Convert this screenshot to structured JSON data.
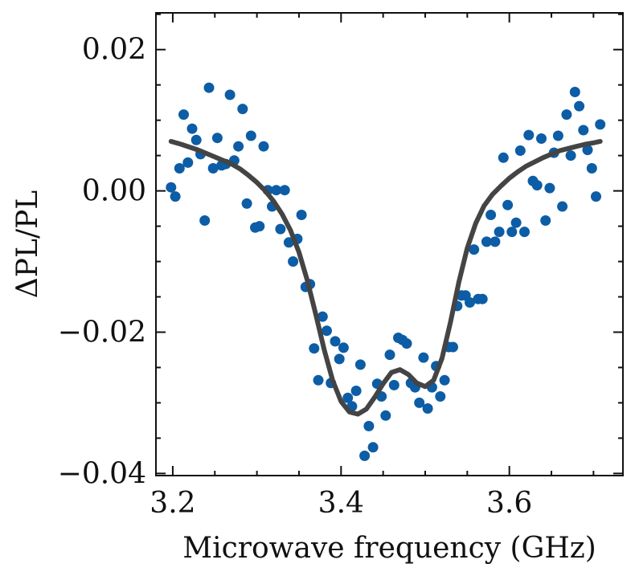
{
  "chart_data": {
    "type": "scatter",
    "title": "",
    "xlabel": "Microwave frequency (GHz)",
    "ylabel": "ΔPL/PL",
    "xlim": [
      3.18,
      3.735
    ],
    "ylim": [
      -0.0403,
      0.0252
    ],
    "xticks": [
      3.2,
      3.4,
      3.6
    ],
    "xtick_labels": [
      "3.2",
      "3.4",
      "3.6"
    ],
    "yticks": [
      0.02,
      0.0,
      -0.02,
      -0.04
    ],
    "ytick_labels": [
      "0.02",
      "0.00",
      "−0.02",
      "−0.04"
    ],
    "grid": false,
    "legend": "none",
    "colors": {
      "points": "#0C5DA5",
      "fit": "#444444",
      "axes": "#111111"
    },
    "series": [
      {
        "kind": "points",
        "x": [
          3.198,
          3.203,
          3.208,
          3.213,
          3.218,
          3.223,
          3.228,
          3.233,
          3.238,
          3.243,
          3.248,
          3.253,
          3.258,
          3.263,
          3.268,
          3.273,
          3.278,
          3.283,
          3.288,
          3.293,
          3.298,
          3.303,
          3.308,
          3.313,
          3.318,
          3.323,
          3.328,
          3.333,
          3.338,
          3.343,
          3.348,
          3.353,
          3.358,
          3.363,
          3.368,
          3.373,
          3.378,
          3.383,
          3.388,
          3.393,
          3.398,
          3.403,
          3.408,
          3.413,
          3.418,
          3.423,
          3.428,
          3.433,
          3.438,
          3.443,
          3.448,
          3.453,
          3.458,
          3.463,
          3.468,
          3.473,
          3.478,
          3.483,
          3.488,
          3.493,
          3.498,
          3.503,
          3.508,
          3.513,
          3.518,
          3.523,
          3.528,
          3.533,
          3.538,
          3.543,
          3.548,
          3.553,
          3.558,
          3.563,
          3.568,
          3.573,
          3.578,
          3.583,
          3.588,
          3.593,
          3.598,
          3.603,
          3.608,
          3.613,
          3.618,
          3.623,
          3.628,
          3.633,
          3.638,
          3.643,
          3.648,
          3.653,
          3.658,
          3.663,
          3.668,
          3.673,
          3.678,
          3.683,
          3.688,
          3.693,
          3.698,
          3.703,
          3.708
        ],
        "y": [
          0.0005,
          -0.0008,
          0.0032,
          0.0108,
          0.004,
          0.0088,
          0.0072,
          0.0052,
          -0.0042,
          0.0146,
          0.0032,
          0.0075,
          0.0036,
          0.0038,
          0.0136,
          0.0043,
          0.0063,
          0.0116,
          -0.0018,
          0.0078,
          -0.0052,
          -0.005,
          0.0063,
          0.0001,
          -0.0022,
          0.0001,
          -0.0054,
          0.0001,
          -0.0073,
          -0.01,
          -0.0068,
          -0.0034,
          -0.0136,
          -0.0132,
          -0.0223,
          -0.0268,
          -0.0178,
          -0.0198,
          -0.0272,
          -0.0213,
          -0.0238,
          -0.0222,
          -0.0293,
          -0.0305,
          -0.0283,
          -0.0246,
          -0.0375,
          -0.0333,
          -0.0363,
          -0.0273,
          -0.0291,
          -0.0318,
          -0.0232,
          -0.0275,
          -0.0208,
          -0.0211,
          -0.0216,
          -0.0272,
          -0.0278,
          -0.03,
          -0.0236,
          -0.0308,
          -0.0278,
          -0.0248,
          -0.0291,
          -0.0268,
          -0.0221,
          -0.0221,
          -0.0163,
          -0.0148,
          -0.0148,
          -0.0158,
          -0.0083,
          -0.0153,
          -0.0153,
          -0.0072,
          -0.0034,
          -0.0072,
          -0.0058,
          0.0047,
          -0.002,
          -0.0058,
          -0.0045,
          0.0057,
          -0.0058,
          0.0079,
          0.0014,
          0.0008,
          0.0074,
          -0.0042,
          0.0004,
          0.0054,
          0.0078,
          -0.0022,
          0.0108,
          0.005,
          0.014,
          0.012,
          0.0086,
          0.0058,
          0.0032,
          -0.0008,
          0.0094
        ]
      },
      {
        "kind": "fit",
        "x": [
          3.198,
          3.21,
          3.22,
          3.23,
          3.24,
          3.25,
          3.26,
          3.27,
          3.28,
          3.29,
          3.3,
          3.31,
          3.32,
          3.33,
          3.34,
          3.35,
          3.36,
          3.37,
          3.38,
          3.39,
          3.4,
          3.41,
          3.42,
          3.43,
          3.44,
          3.45,
          3.46,
          3.47,
          3.48,
          3.49,
          3.5,
          3.51,
          3.52,
          3.53,
          3.54,
          3.55,
          3.56,
          3.57,
          3.58,
          3.59,
          3.6,
          3.61,
          3.62,
          3.63,
          3.64,
          3.65,
          3.66,
          3.67,
          3.68,
          3.69,
          3.7,
          3.708
        ],
        "y": [
          0.007,
          0.0066,
          0.0062,
          0.0058,
          0.0053,
          0.0048,
          0.0043,
          0.0038,
          0.0031,
          0.0022,
          0.0012,
          0.0,
          -0.0015,
          -0.0033,
          -0.0056,
          -0.0087,
          -0.0127,
          -0.0175,
          -0.0225,
          -0.0268,
          -0.0298,
          -0.0313,
          -0.0316,
          -0.0309,
          -0.0292,
          -0.0273,
          -0.0257,
          -0.0253,
          -0.026,
          -0.0272,
          -0.0277,
          -0.0268,
          -0.0237,
          -0.0186,
          -0.0129,
          -0.0081,
          -0.0046,
          -0.0021,
          -0.0005,
          0.0007,
          0.0018,
          0.0027,
          0.0035,
          0.0041,
          0.0047,
          0.0052,
          0.0057,
          0.006,
          0.0063,
          0.0066,
          0.0068,
          0.007
        ]
      }
    ]
  }
}
